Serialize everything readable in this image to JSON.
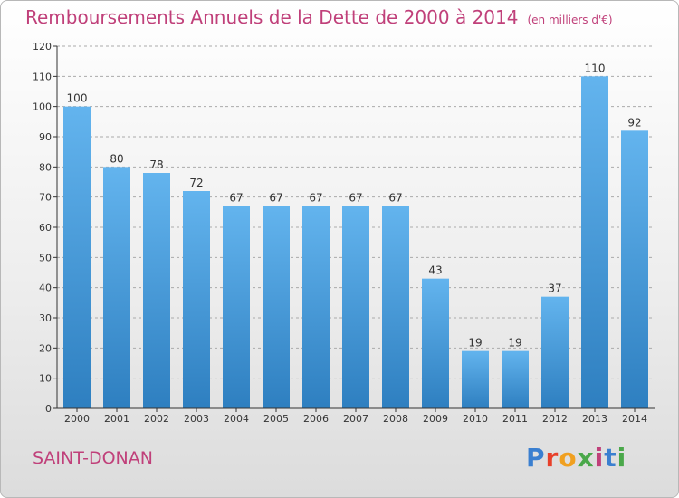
{
  "header": {
    "title": "Remboursements Annuels de la Dette de 2000 à 2014",
    "unit": "(en milliers d'€)"
  },
  "footer": {
    "commune": "SAINT-DONAN",
    "brand": "Proxiti",
    "brand_letters": [
      "P",
      "r",
      "o",
      "x",
      "i",
      "t",
      "i"
    ],
    "brand_colors": [
      "#3a7fd0",
      "#e8402a",
      "#f0a020",
      "#4aa84a",
      "#c0407a",
      "#3a7fd0",
      "#4aa84a"
    ]
  },
  "colors": {
    "title": "#c0407a",
    "bar_top": "#63b4ee",
    "bar_bottom": "#2e7fc0",
    "grid": "#aaaaaa",
    "axis": "#333333"
  },
  "chart_data": {
    "type": "bar",
    "title": "Remboursements Annuels de la Dette de 2000 à 2014",
    "xlabel": "",
    "ylabel": "",
    "categories": [
      "2000",
      "2001",
      "2002",
      "2003",
      "2004",
      "2005",
      "2006",
      "2007",
      "2008",
      "2009",
      "2010",
      "2011",
      "2012",
      "2013",
      "2014"
    ],
    "values": [
      100,
      80,
      78,
      72,
      67,
      67,
      67,
      67,
      67,
      43,
      19,
      19,
      37,
      110,
      92
    ],
    "ylim": [
      0,
      120
    ],
    "yticks": [
      0,
      10,
      20,
      30,
      40,
      50,
      60,
      70,
      80,
      90,
      100,
      110,
      120
    ],
    "grid": true,
    "show_values": true
  }
}
